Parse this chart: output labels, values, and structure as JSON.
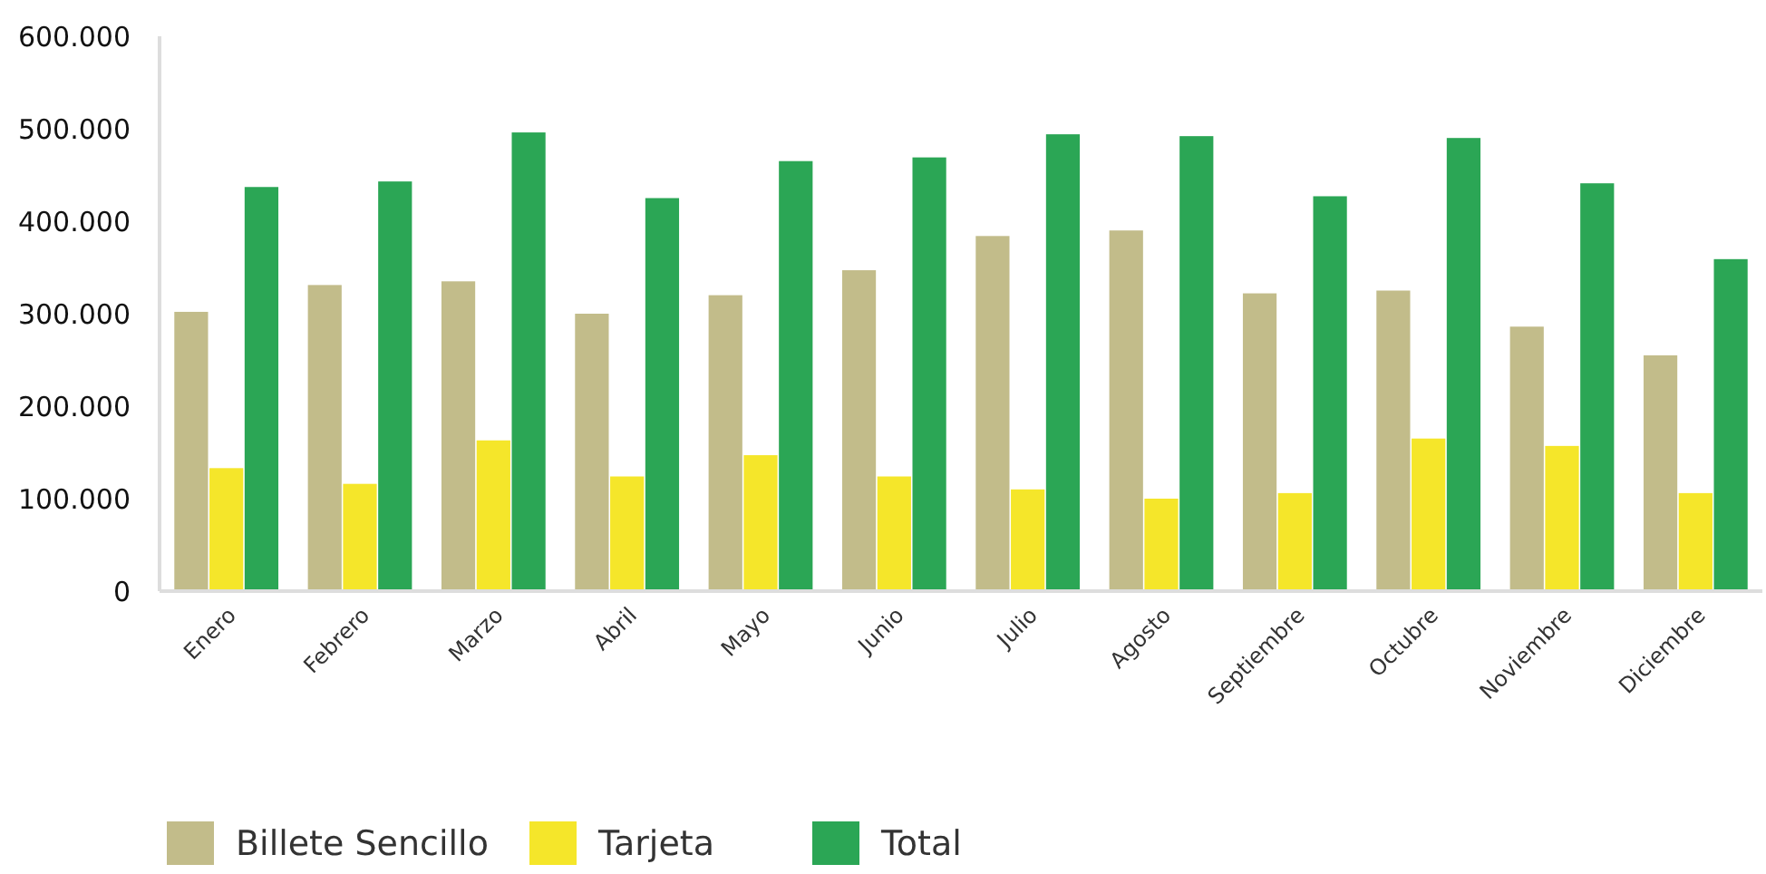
{
  "chart_data": {
    "type": "bar",
    "categories": [
      "Enero",
      "Febrero",
      "Marzo",
      "Abril",
      "Mayo",
      "Junio",
      "Julio",
      "Agosto",
      "Septiembre",
      "Octubre",
      "Noviembre",
      "Diciembre"
    ],
    "series": [
      {
        "name": "Billete Sencillo",
        "color": "#c2bc8a",
        "values": [
          302000,
          331000,
          335000,
          300000,
          320000,
          347000,
          384000,
          390000,
          322000,
          325000,
          286000,
          255000
        ]
      },
      {
        "name": "Tarjeta",
        "color": "#f5e62a",
        "values": [
          133000,
          116000,
          163000,
          124000,
          147000,
          124000,
          110000,
          100000,
          106000,
          165000,
          157000,
          106000
        ]
      },
      {
        "name": "Total",
        "color": "#2ba655",
        "values": [
          437000,
          443000,
          496000,
          425000,
          465000,
          469000,
          494000,
          492000,
          427000,
          490000,
          441000,
          359000
        ]
      }
    ],
    "ylim": [
      0,
      600000
    ],
    "yticks": [
      0,
      {
        "value": 100000,
        "label": "100.000"
      },
      {
        "value": 200000,
        "label": "200.000"
      },
      {
        "value": 300000,
        "label": "300.000"
      },
      {
        "value": 400000,
        "label": "400.000"
      },
      {
        "value": 500000,
        "label": "500.000"
      },
      {
        "value": 600000,
        "label": "600.000"
      }
    ],
    "grid": false,
    "legend": "bottom left"
  }
}
